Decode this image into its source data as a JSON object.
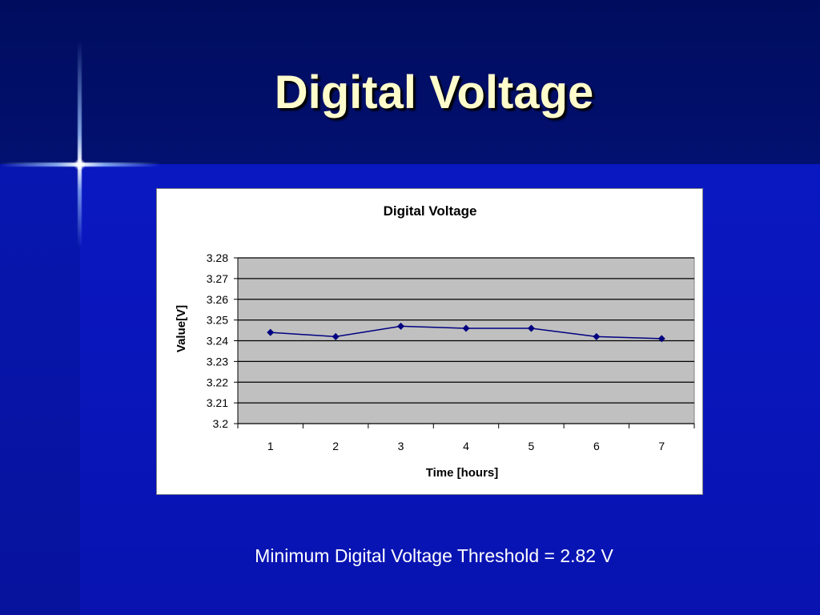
{
  "slide": {
    "title": "Digital Voltage",
    "footnote": "Minimum Digital Voltage Threshold = 2.82 V"
  },
  "colors": {
    "title_text": "#fffccc",
    "plot_area": "#c0c0c0",
    "series_line": "#000080"
  },
  "chart_data": {
    "type": "line",
    "title": "Digital Voltage",
    "xlabel": "Time [hours]",
    "ylabel": "Value[V]",
    "categories": [
      "1",
      "2",
      "3",
      "4",
      "5",
      "6",
      "7"
    ],
    "series": [
      {
        "values": [
          3.244,
          3.242,
          3.247,
          3.246,
          3.246,
          3.242,
          3.241
        ]
      }
    ],
    "ylim": [
      3.2,
      3.28
    ],
    "yticks": [
      "3.2",
      "3.21",
      "3.22",
      "3.23",
      "3.24",
      "3.25",
      "3.26",
      "3.27",
      "3.28"
    ],
    "grid": true,
    "legend": "none",
    "marker": "diamond"
  }
}
